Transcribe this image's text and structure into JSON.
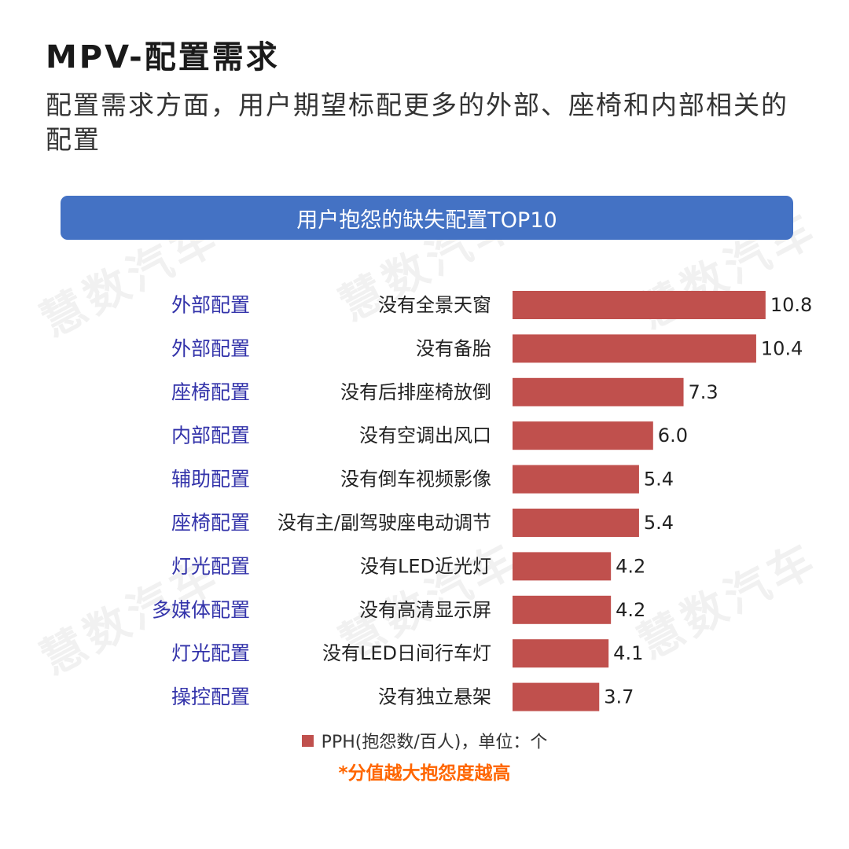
{
  "page": {
    "title": "MPV-配置需求",
    "subtitle": "配置需求方面，用户期望标配更多的外部、座椅和内部相关的配置"
  },
  "watermark": {
    "text": "慧数汽车"
  },
  "chart_data": {
    "type": "bar",
    "orientation": "horizontal",
    "title": "用户抱怨的缺失配置TOP10",
    "groups": [
      "外部配置",
      "外部配置",
      "座椅配置",
      "内部配置",
      "辅助配置",
      "座椅配置",
      "灯光配置",
      "多媒体配置",
      "灯光配置",
      "操控配置"
    ],
    "categories": [
      "没有全景天窗",
      "没有备胎",
      "没有后排座椅放倒",
      "没有空调出风口",
      "没有倒车视频影像",
      "没有主/副驾驶座电动调节",
      "没有LED近光灯",
      "没有高清显示屏",
      "没有LED日间行车灯",
      "没有独立悬架"
    ],
    "values": [
      10.8,
      10.4,
      7.3,
      6.0,
      5.4,
      5.4,
      4.2,
      4.2,
      4.1,
      3.7
    ],
    "value_labels": [
      "10.8",
      "10.4",
      "7.3",
      "6.0",
      "5.4",
      "5.4",
      "4.2",
      "4.2",
      "4.1",
      "3.7"
    ],
    "series": [
      {
        "name": "PPH(抱怨数/百人)，单位：个",
        "color": "#c0504d"
      }
    ],
    "legend_position": "bottom",
    "note": "*分值越大抱怨度越高",
    "colors": {
      "bar": "#c0504d",
      "group_label": "#3333aa",
      "banner": "#4472c4",
      "note": "#ff6600"
    }
  }
}
